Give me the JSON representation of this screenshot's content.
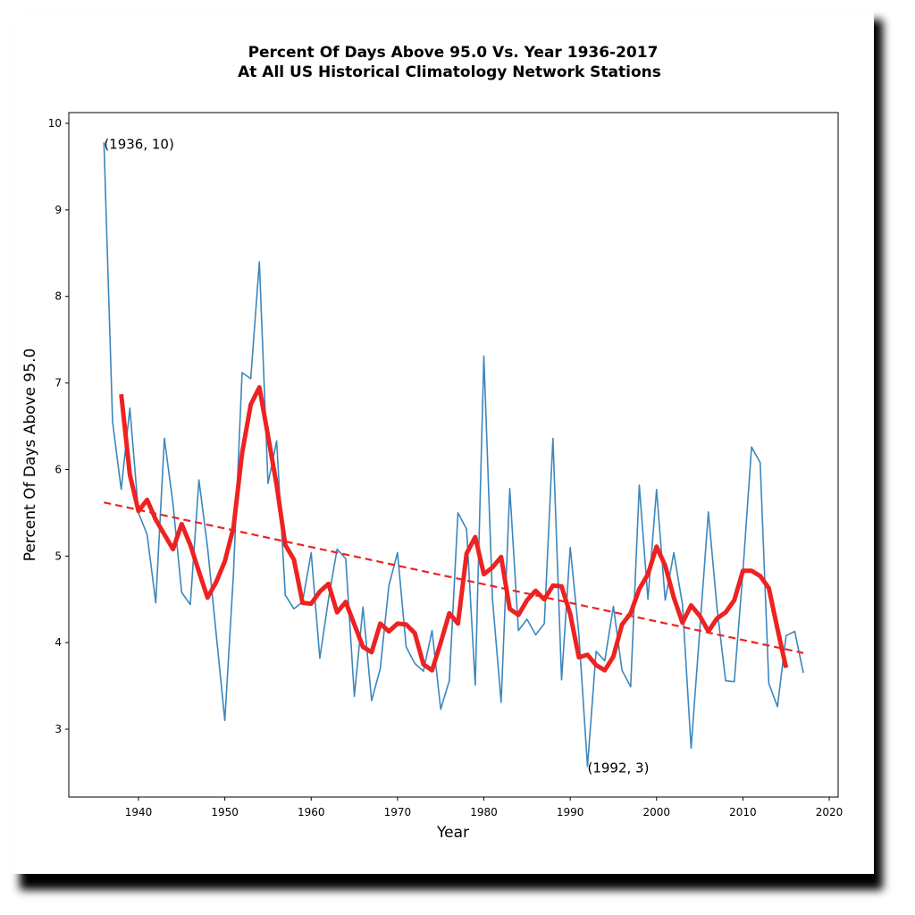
{
  "chart_data": {
    "type": "line",
    "title": [
      "Percent Of Days Above 95.0 Vs. Year 1936-2017",
      "At All US Historical Climatology Network Stations"
    ],
    "x_label": "Year",
    "y_label": "Percent Of Days Above 95.0",
    "xlim": [
      1931.93,
      2021.03
    ],
    "ylim": [
      2.216,
      10.124
    ],
    "xticks": [
      1940,
      1950,
      1960,
      1970,
      1980,
      1990,
      2000,
      2010,
      2020
    ],
    "yticks": [
      3,
      4,
      5,
      6,
      7,
      8,
      9,
      10
    ],
    "grid": false,
    "series": [
      {
        "color": "#3c87bd",
        "style": "solid",
        "x": [
          1936,
          1937,
          1938,
          1939,
          1940,
          1941,
          1942,
          1943,
          1944,
          1945,
          1946,
          1947,
          1948,
          1949,
          1950,
          1951,
          1952,
          1953,
          1954,
          1955,
          1956,
          1957,
          1958,
          1959,
          1960,
          1961,
          1962,
          1963,
          1964,
          1965,
          1966,
          1967,
          1968,
          1969,
          1970,
          1971,
          1972,
          1973,
          1974,
          1975,
          1976,
          1977,
          1978,
          1979,
          1980,
          1981,
          1982,
          1983,
          1984,
          1985,
          1986,
          1987,
          1988,
          1989,
          1990,
          1991,
          1992,
          1993,
          1994,
          1995,
          1996,
          1997,
          1998,
          1999,
          2000,
          2001,
          2002,
          2003,
          2004,
          2005,
          2006,
          2007,
          2008,
          2009,
          2010,
          2011,
          2012,
          2013,
          2014,
          2015,
          2016,
          2017
        ],
        "values": [
          9.78,
          6.55,
          5.77,
          6.71,
          5.5,
          5.25,
          4.46,
          6.36,
          5.6,
          4.58,
          4.44,
          5.88,
          5.1,
          4.1,
          3.1,
          4.8,
          7.12,
          7.05,
          8.4,
          5.84,
          6.33,
          4.55,
          4.39,
          4.47,
          5.04,
          3.82,
          4.5,
          5.08,
          4.97,
          3.38,
          4.41,
          3.33,
          3.7,
          4.66,
          5.04,
          3.95,
          3.76,
          3.67,
          4.14,
          3.23,
          3.56,
          5.5,
          5.31,
          3.51,
          7.31,
          4.5,
          3.31,
          5.78,
          4.14,
          4.27,
          4.09,
          4.22,
          6.36,
          3.57,
          5.1,
          4.1,
          2.57,
          3.9,
          3.79,
          4.42,
          3.68,
          3.49,
          5.82,
          4.5,
          5.77,
          4.49,
          5.04,
          4.44,
          2.78,
          4.14,
          5.51,
          4.4,
          3.56,
          3.55,
          4.82,
          6.26,
          6.08,
          3.53,
          3.26,
          4.08,
          4.13,
          3.65
        ]
      },
      {
        "color": "#ee2222",
        "style": "solid",
        "x": [
          1938,
          1939,
          1940,
          1941,
          1942,
          1943,
          1944,
          1945,
          1946,
          1947,
          1948,
          1949,
          1950,
          1951,
          1952,
          1953,
          1954,
          1955,
          1956,
          1957,
          1958,
          1959,
          1960,
          1961,
          1962,
          1963,
          1964,
          1965,
          1966,
          1967,
          1968,
          1969,
          1970,
          1971,
          1972,
          1973,
          1974,
          1975,
          1976,
          1977,
          1978,
          1979,
          1980,
          1981,
          1982,
          1983,
          1984,
          1985,
          1986,
          1987,
          1988,
          1989,
          1990,
          1991,
          1992,
          1993,
          1994,
          1995,
          1996,
          1997,
          1998,
          1999,
          2000,
          2001,
          2002,
          2003,
          2004,
          2005,
          2006,
          2007,
          2008,
          2009,
          2010,
          2011,
          2012,
          2013,
          2014,
          2015
        ],
        "values": [
          6.87,
          5.94,
          5.52,
          5.65,
          5.42,
          5.25,
          5.08,
          5.37,
          5.13,
          4.82,
          4.52,
          4.7,
          4.94,
          5.33,
          6.19,
          6.75,
          6.95,
          6.39,
          5.82,
          5.13,
          4.96,
          4.46,
          4.45,
          4.59,
          4.68,
          4.35,
          4.47,
          4.21,
          3.95,
          3.89,
          4.22,
          4.13,
          4.22,
          4.21,
          4.11,
          3.75,
          3.68,
          4.0,
          4.34,
          4.22,
          5.03,
          5.22,
          4.79,
          4.87,
          4.99,
          4.39,
          4.32,
          4.49,
          4.6,
          4.5,
          4.66,
          4.65,
          4.33,
          3.83,
          3.86,
          3.74,
          3.68,
          3.84,
          4.21,
          4.34,
          4.62,
          4.79,
          5.11,
          4.89,
          4.52,
          4.23,
          4.43,
          4.31,
          4.13,
          4.28,
          4.35,
          4.49,
          4.83,
          4.83,
          4.77,
          4.63,
          4.16,
          3.71
        ]
      },
      {
        "color": "#ee2222",
        "style": "dashed",
        "x": [
          1936,
          2017
        ],
        "values": [
          5.62,
          3.88
        ]
      }
    ],
    "annotations": [
      {
        "text": "(1936, 10)",
        "x": 1936,
        "y": 9.78
      },
      {
        "text": "(1992, 3)",
        "x": 1992,
        "y": 2.57
      }
    ]
  }
}
